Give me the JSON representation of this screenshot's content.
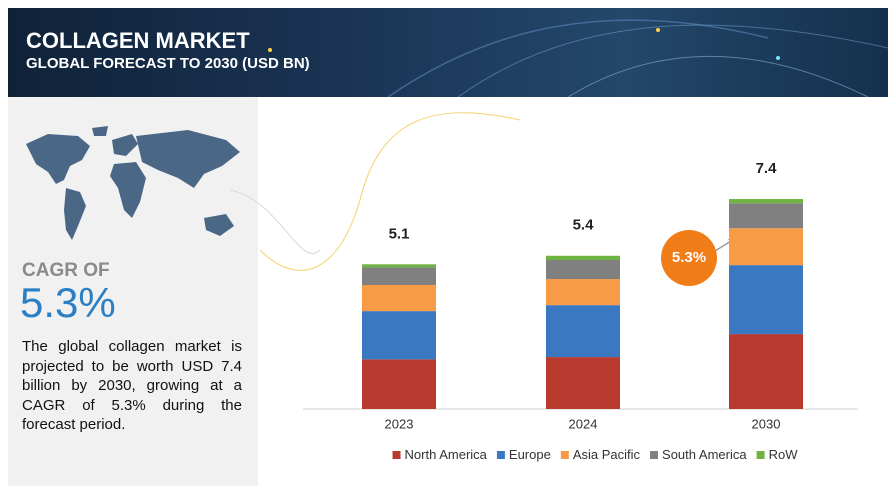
{
  "header": {
    "title": "COLLAGEN MARKET",
    "subtitle": "GLOBAL FORECAST TO 2030 (USD BN)"
  },
  "sidebar": {
    "cagr_label": "CAGR OF",
    "cagr_value": "5.3%",
    "description": "The global collagen market is projected to be worth USD 7.4 billion by 2030, growing at a CAGR of 5.3% during the forecast period."
  },
  "chart_data": {
    "type": "bar",
    "stacked": true,
    "categories": [
      "2023",
      "2024",
      "2030"
    ],
    "totals": [
      5.1,
      5.4,
      7.4
    ],
    "annotation": "5.3%",
    "ylim": [
      0,
      8
    ],
    "series": [
      {
        "name": "North America",
        "color": "#b83a2f",
        "values": [
          1.75,
          1.83,
          2.64
        ]
      },
      {
        "name": "Europe",
        "color": "#3b78c2",
        "values": [
          1.7,
          1.83,
          2.43
        ]
      },
      {
        "name": "Asia Pacific",
        "color": "#f79b46",
        "values": [
          0.92,
          0.92,
          1.3
        ]
      },
      {
        "name": "South America",
        "color": "#808080",
        "values": [
          0.62,
          0.67,
          0.88
        ]
      },
      {
        "name": "RoW",
        "color": "#6fb343",
        "values": [
          0.11,
          0.15,
          0.15
        ]
      }
    ]
  }
}
